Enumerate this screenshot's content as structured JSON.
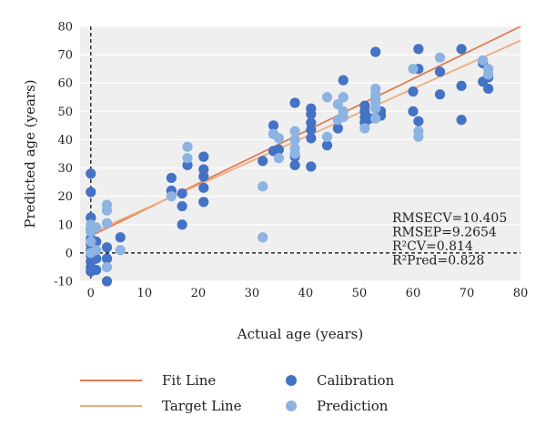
{
  "chart_data": {
    "type": "scatter",
    "xlabel": "Actual age (years)",
    "ylabel": "Predicted age (years)",
    "xlim": [
      -2,
      80
    ],
    "ylim": [
      -10,
      80
    ],
    "xticks": [
      0,
      10,
      20,
      30,
      40,
      50,
      60,
      70,
      80
    ],
    "yticks": [
      -10,
      0,
      10,
      20,
      30,
      40,
      50,
      60,
      70,
      80
    ],
    "grid": "horizontal",
    "legend_position": "bottom",
    "colors": {
      "calibration": "#4472c4",
      "prediction": "#8db3e2",
      "fit_line": "#e07b53",
      "target_line": "#f0aa7c",
      "reference_lines": "#000000",
      "plot_background": "#efefef"
    },
    "annotations": [
      "RMSECV=10.405",
      "RMSEP=9.2654",
      "R²CV=0.814",
      "R²Pred=0.828"
    ],
    "lines": [
      {
        "name": "Fit Line",
        "x": [
          0,
          80
        ],
        "y": [
          6,
          80
        ]
      },
      {
        "name": "Target Line",
        "x": [
          0,
          80
        ],
        "y": [
          7,
          75
        ]
      }
    ],
    "series": [
      {
        "name": "Calibration",
        "points": [
          [
            0,
            28
          ],
          [
            0,
            21.5
          ],
          [
            0,
            12.5
          ],
          [
            0,
            8
          ],
          [
            0,
            5
          ],
          [
            0,
            3
          ],
          [
            0,
            1
          ],
          [
            0,
            -1
          ],
          [
            0,
            -3
          ],
          [
            0,
            -5
          ],
          [
            0,
            -6.5
          ],
          [
            1,
            4
          ],
          [
            1,
            -2
          ],
          [
            1,
            -6
          ],
          [
            3,
            2
          ],
          [
            3,
            -2
          ],
          [
            3,
            -10
          ],
          [
            5.5,
            5.5
          ],
          [
            15,
            26.5
          ],
          [
            15,
            22
          ],
          [
            17,
            21
          ],
          [
            17,
            16.5
          ],
          [
            17,
            10
          ],
          [
            18,
            31
          ],
          [
            21,
            34
          ],
          [
            21,
            29.5
          ],
          [
            21,
            27
          ],
          [
            21,
            23
          ],
          [
            21,
            18
          ],
          [
            32,
            32.5
          ],
          [
            34,
            45
          ],
          [
            34,
            42
          ],
          [
            34,
            36
          ],
          [
            35,
            36.5
          ],
          [
            38,
            53
          ],
          [
            38,
            34
          ],
          [
            38,
            31
          ],
          [
            41,
            51
          ],
          [
            41,
            49
          ],
          [
            41,
            46
          ],
          [
            41,
            43.5
          ],
          [
            41,
            40.5
          ],
          [
            41,
            30.5
          ],
          [
            44,
            38
          ],
          [
            46,
            44
          ],
          [
            47,
            61
          ],
          [
            51,
            52
          ],
          [
            51,
            50
          ],
          [
            51,
            48
          ],
          [
            51,
            46
          ],
          [
            52,
            47.5
          ],
          [
            53,
            71
          ],
          [
            54,
            50
          ],
          [
            54,
            48.5
          ],
          [
            60,
            57
          ],
          [
            60,
            50
          ],
          [
            61,
            72
          ],
          [
            61,
            65
          ],
          [
            61,
            46.5
          ],
          [
            65,
            64
          ],
          [
            65,
            56
          ],
          [
            69,
            72
          ],
          [
            69,
            59
          ],
          [
            69,
            47
          ],
          [
            73,
            67
          ],
          [
            73,
            60.5
          ],
          [
            74,
            62
          ],
          [
            74,
            58
          ]
        ]
      },
      {
        "name": "Prediction",
        "points": [
          [
            0,
            10
          ],
          [
            0,
            7.5
          ],
          [
            0,
            4
          ],
          [
            0,
            0
          ],
          [
            1,
            9
          ],
          [
            1,
            1
          ],
          [
            3,
            17
          ],
          [
            3,
            15
          ],
          [
            3,
            10.5
          ],
          [
            3,
            -5
          ],
          [
            5.5,
            1
          ],
          [
            15,
            20
          ],
          [
            18,
            37.5
          ],
          [
            18,
            33.5
          ],
          [
            32,
            23.5
          ],
          [
            32,
            5.5
          ],
          [
            34,
            42
          ],
          [
            35,
            40.5
          ],
          [
            35,
            33.5
          ],
          [
            38,
            43
          ],
          [
            38,
            40
          ],
          [
            38,
            37
          ],
          [
            38,
            35
          ],
          [
            44,
            55
          ],
          [
            44,
            41
          ],
          [
            46,
            52.5
          ],
          [
            46,
            47
          ],
          [
            47,
            55
          ],
          [
            47,
            50
          ],
          [
            47,
            48
          ],
          [
            51,
            44
          ],
          [
            53,
            58
          ],
          [
            53,
            56
          ],
          [
            53,
            54.5
          ],
          [
            53,
            53
          ],
          [
            53,
            51
          ],
          [
            53,
            47.5
          ],
          [
            60,
            65
          ],
          [
            61,
            43
          ],
          [
            61,
            41
          ],
          [
            65,
            69
          ],
          [
            73,
            68
          ],
          [
            74,
            65
          ],
          [
            74,
            63
          ]
        ]
      }
    ],
    "legend_labels": {
      "fit": "Fit Line",
      "target": "Target Line",
      "calibration": "Calibration",
      "prediction": "Prediction"
    }
  }
}
